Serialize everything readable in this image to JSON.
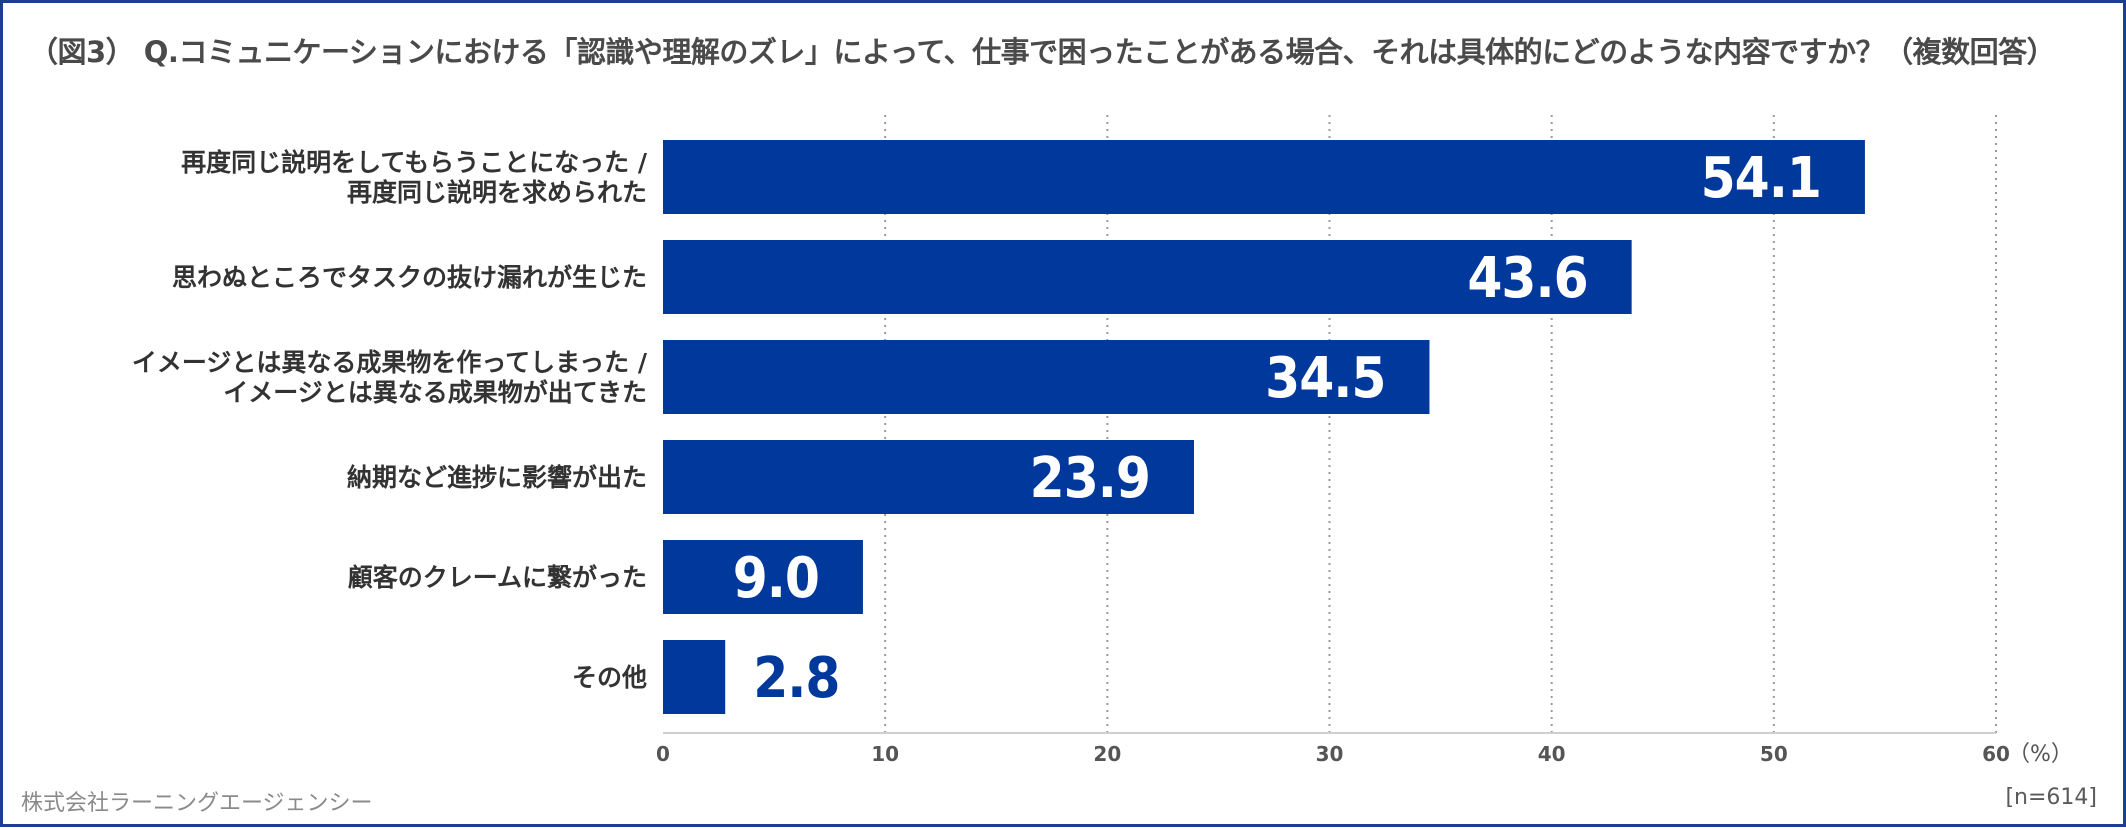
{
  "title": "（図3） Q.コミュニケーションにおける「認識や理解のズレ」によって、仕事で困ったことがある場合、それは具体的にどのような内容ですか？（複数回答）",
  "footer": {
    "company": "株式会社ラーニングエージェンシー",
    "sample": "[n=614]"
  },
  "colors": {
    "bar": "#00389b",
    "label_inside": "#ffffff",
    "label_outside": "#00389b",
    "grid": "#9a9a9a",
    "axis": "#cfcfcf",
    "category_text": "#333333"
  },
  "chart_data": {
    "type": "bar",
    "orientation": "horizontal",
    "categories": [
      [
        "再度同じ説明をしてもらうことになった /",
        "再度同じ説明を求められた"
      ],
      [
        "思わぬところでタスクの抜け漏れが生じた"
      ],
      [
        "イメージとは異なる成果物を作ってしまった /",
        "イメージとは異なる成果物が出てきた"
      ],
      [
        "納期など進捗に影響が出た"
      ],
      [
        "顧客のクレームに繋がった"
      ],
      [
        "その他"
      ]
    ],
    "values": [
      54.1,
      43.6,
      34.5,
      23.9,
      9.0,
      2.8
    ],
    "value_labels": [
      "54.1",
      "43.6",
      "34.5",
      "23.9",
      "9.0",
      "2.8"
    ],
    "xlim": [
      0,
      60
    ],
    "ticks": [
      0,
      10,
      20,
      30,
      40,
      50,
      60
    ],
    "tick_labels": [
      "0",
      "10",
      "20",
      "30",
      "40",
      "50",
      "60"
    ],
    "unit": "（%）",
    "grid": true,
    "legend": "none"
  }
}
